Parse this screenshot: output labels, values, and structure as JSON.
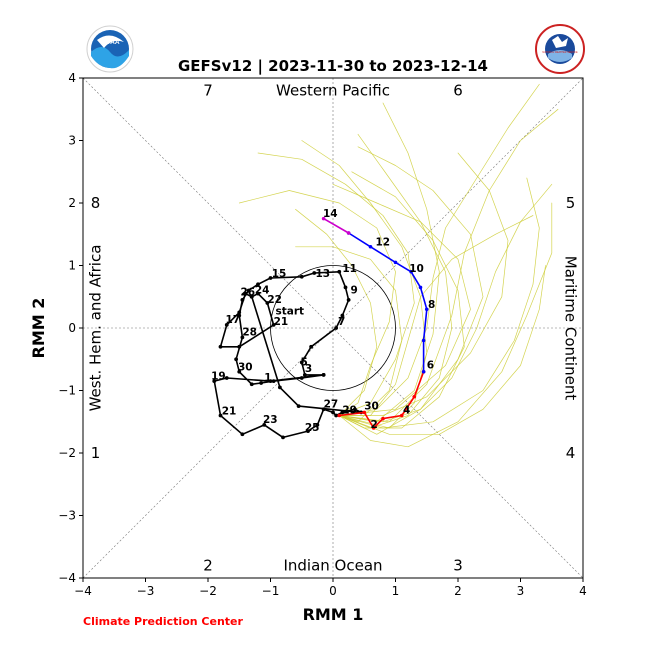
{
  "title": "GEFSv12 | 2023-11-30 to 2023-12-14",
  "credit": "Climate Prediction Center",
  "logos": {
    "left": {
      "text": "NOAA",
      "icon": "noaa-logo-icon"
    },
    "right": {
      "text": "NATIONAL WEATHER SERVICE",
      "icon": "nws-logo-icon"
    }
  },
  "colors": {
    "observed": "#000000",
    "forecast_week1": "#ff0000",
    "forecast_week2": "#0000ff",
    "forecast_end": "#cc00cc",
    "ensemble": "#cccc33",
    "credit": "#ff0000"
  },
  "chart_data": {
    "type": "line",
    "xlabel": "RMM 1",
    "ylabel": "RMM 2",
    "xlim": [
      -4,
      4
    ],
    "ylim": [
      -4,
      4
    ],
    "xticks": [
      -4,
      -3,
      -2,
      -1,
      0,
      1,
      2,
      3,
      4
    ],
    "yticks": [
      -4,
      -3,
      -2,
      -1,
      0,
      1,
      2,
      3,
      4
    ],
    "tick_labels": [
      "−4",
      "−3",
      "−2",
      "−1",
      "0",
      "1",
      "2",
      "3",
      "4"
    ],
    "unit_circle_radius": 1,
    "phase_labels": [
      {
        "text": "7",
        "x": -2.0,
        "y": 3.8
      },
      {
        "text": "6",
        "x": 2.0,
        "y": 3.8
      },
      {
        "text": "8",
        "x": -3.8,
        "y": 2.0
      },
      {
        "text": "5",
        "x": 3.8,
        "y": 2.0
      },
      {
        "text": "1",
        "x": -3.8,
        "y": -2.0
      },
      {
        "text": "4",
        "x": 3.8,
        "y": -2.0
      },
      {
        "text": "2",
        "x": -2.0,
        "y": -3.8
      },
      {
        "text": "3",
        "x": 2.0,
        "y": -3.8
      }
    ],
    "region_labels": {
      "top": "Western Pacific",
      "bottom": "Indian Ocean",
      "left": "West. Hem. and Africa",
      "right": "Maritime Continent"
    },
    "observed": [
      [
        -0.15,
        -0.75
      ],
      [
        -0.5,
        -0.8
      ],
      [
        -0.95,
        -0.85
      ],
      [
        -1.15,
        -0.88
      ],
      [
        -1.3,
        -0.9
      ],
      [
        -1.5,
        -0.7
      ],
      [
        -1.55,
        -0.5
      ],
      [
        -1.45,
        -0.15
      ],
      [
        -1.5,
        0.2
      ],
      [
        -1.45,
        0.45
      ],
      [
        -1.35,
        0.6
      ],
      [
        -1.2,
        0.7
      ],
      [
        -1.0,
        0.8
      ],
      [
        -0.5,
        0.82
      ],
      [
        -0.3,
        0.88
      ],
      [
        0.1,
        0.9
      ],
      [
        0.2,
        0.65
      ],
      [
        0.25,
        0.45
      ],
      [
        0.15,
        0.2
      ],
      [
        0.05,
        0.0
      ],
      [
        -0.35,
        -0.3
      ],
      [
        -0.5,
        -0.55
      ],
      [
        -0.45,
        -0.75
      ],
      [
        -0.15,
        -0.75
      ],
      [
        -1.0,
        -0.85
      ],
      [
        -1.7,
        -0.8
      ],
      [
        -1.9,
        -0.85
      ],
      [
        -1.8,
        -1.4
      ],
      [
        -1.45,
        -1.7
      ],
      [
        -1.1,
        -1.55
      ],
      [
        -0.8,
        -1.75
      ],
      [
        -0.4,
        -1.65
      ],
      [
        -0.25,
        -1.55
      ],
      [
        -0.15,
        -1.3
      ],
      [
        0.0,
        -1.35
      ],
      [
        0.05,
        -1.4
      ],
      [
        0.15,
        -1.35
      ],
      [
        0.35,
        -1.3
      ],
      [
        0.45,
        -1.35
      ],
      [
        -0.55,
        -1.25
      ],
      [
        -0.85,
        -0.95
      ],
      [
        -1.3,
        0.5
      ],
      [
        -1.2,
        0.55
      ],
      [
        -1.05,
        0.4
      ],
      [
        -0.95,
        0.05
      ],
      [
        -1.5,
        -0.3
      ],
      [
        -1.8,
        -0.3
      ],
      [
        -1.7,
        0.05
      ],
      [
        -1.5,
        0.25
      ],
      [
        -1.4,
        0.55
      ],
      [
        -1.3,
        0.5
      ]
    ],
    "observed_labels": [
      {
        "text": "start",
        "x": -0.92,
        "y": 0.22
      },
      {
        "text": "21",
        "x": -0.95,
        "y": 0.05
      },
      {
        "text": "22",
        "x": -1.05,
        "y": 0.4
      },
      {
        "text": "24",
        "x": -1.25,
        "y": 0.55
      },
      {
        "text": "26",
        "x": -1.48,
        "y": 0.52
      },
      {
        "text": "28",
        "x": -1.45,
        "y": -0.12
      },
      {
        "text": "17",
        "x": -1.72,
        "y": 0.08
      },
      {
        "text": "30",
        "x": -1.52,
        "y": -0.68
      },
      {
        "text": "1",
        "x": -1.1,
        "y": -0.85
      },
      {
        "text": "3",
        "x": -0.45,
        "y": -0.7
      },
      {
        "text": "5",
        "x": -0.52,
        "y": -0.6
      },
      {
        "text": "7",
        "x": 0.08,
        "y": 0.05
      },
      {
        "text": "9",
        "x": 0.28,
        "y": 0.55
      },
      {
        "text": "11",
        "x": 0.15,
        "y": 0.9
      },
      {
        "text": "13",
        "x": -0.28,
        "y": 0.82
      },
      {
        "text": "15",
        "x": -0.98,
        "y": 0.82
      },
      {
        "text": "19",
        "x": -1.95,
        "y": -0.82
      },
      {
        "text": "21",
        "x": -1.78,
        "y": -1.38
      },
      {
        "text": "23",
        "x": -1.12,
        "y": -1.52
      },
      {
        "text": "25",
        "x": -0.45,
        "y": -1.65
      },
      {
        "text": "27",
        "x": -0.15,
        "y": -1.27
      },
      {
        "text": "29",
        "x": 0.15,
        "y": -1.37
      },
      {
        "text": "30",
        "x": 0.5,
        "y": -1.3
      }
    ],
    "forecast_week1": [
      [
        0.1,
        -1.4
      ],
      [
        0.5,
        -1.35
      ],
      [
        0.65,
        -1.6
      ],
      [
        0.8,
        -1.45
      ],
      [
        1.1,
        -1.4
      ],
      [
        1.3,
        -1.1
      ],
      [
        1.45,
        -0.7
      ]
    ],
    "forecast_week1_labels": [
      {
        "text": "2",
        "x": 0.6,
        "y": -1.6
      },
      {
        "text": "4",
        "x": 1.12,
        "y": -1.37
      },
      {
        "text": "6",
        "x": 1.5,
        "y": -0.65
      }
    ],
    "forecast_week2": [
      [
        1.45,
        -0.7
      ],
      [
        1.45,
        -0.2
      ],
      [
        1.5,
        0.3
      ],
      [
        1.4,
        0.65
      ],
      [
        1.25,
        0.9
      ],
      [
        1.0,
        1.05
      ],
      [
        0.6,
        1.3
      ],
      [
        0.25,
        1.52
      ]
    ],
    "forecast_week2_labels": [
      {
        "text": "8",
        "x": 1.52,
        "y": 0.32
      },
      {
        "text": "10",
        "x": 1.22,
        "y": 0.9
      },
      {
        "text": "12",
        "x": 0.68,
        "y": 1.32
      },
      {
        "text": "14",
        "x": -0.16,
        "y": 1.78
      }
    ],
    "forecast_end": [
      [
        0.25,
        1.52
      ],
      [
        -0.15,
        1.75
      ]
    ],
    "ensemble": [
      [
        [
          0.1,
          -1.4
        ],
        [
          0.7,
          -1.7
        ],
        [
          1.4,
          -1.3
        ],
        [
          2.0,
          -0.5
        ],
        [
          2.4,
          0.5
        ],
        [
          2.2,
          1.5
        ],
        [
          1.6,
          2.2
        ],
        [
          1.0,
          2.6
        ],
        [
          0.4,
          2.9
        ]
      ],
      [
        [
          0.1,
          -1.4
        ],
        [
          0.9,
          -1.5
        ],
        [
          1.5,
          -0.9
        ],
        [
          1.9,
          0.2
        ],
        [
          2.1,
          1.2
        ],
        [
          2.5,
          2.2
        ],
        [
          3.0,
          3.0
        ],
        [
          3.6,
          3.5
        ]
      ],
      [
        [
          0.1,
          -1.4
        ],
        [
          0.6,
          -1.2
        ],
        [
          1.0,
          -0.5
        ],
        [
          1.3,
          0.4
        ],
        [
          1.2,
          1.2
        ],
        [
          0.8,
          1.8
        ],
        [
          0.2,
          2.3
        ],
        [
          -0.5,
          2.7
        ],
        [
          -1.2,
          2.8
        ]
      ],
      [
        [
          0.1,
          -1.4
        ],
        [
          0.8,
          -1.6
        ],
        [
          1.6,
          -1.5
        ],
        [
          2.4,
          -1.0
        ],
        [
          2.9,
          -0.2
        ],
        [
          3.2,
          0.7
        ],
        [
          3.3,
          1.6
        ],
        [
          3.1,
          2.4
        ]
      ],
      [
        [
          0.1,
          -1.4
        ],
        [
          0.5,
          -1.0
        ],
        [
          0.7,
          -0.3
        ],
        [
          0.6,
          0.4
        ],
        [
          0.3,
          1.0
        ],
        [
          -0.1,
          1.5
        ],
        [
          -0.6,
          1.9
        ]
      ],
      [
        [
          0.1,
          -1.4
        ],
        [
          1.0,
          -1.3
        ],
        [
          1.8,
          -0.6
        ],
        [
          2.2,
          0.3
        ],
        [
          2.0,
          1.1
        ],
        [
          1.4,
          1.7
        ],
        [
          0.7,
          2.0
        ],
        [
          0.0,
          2.3
        ]
      ],
      [
        [
          0.1,
          -1.4
        ],
        [
          0.6,
          -1.8
        ],
        [
          1.2,
          -1.9
        ],
        [
          2.0,
          -1.5
        ],
        [
          2.7,
          -0.7
        ],
        [
          3.1,
          0.2
        ],
        [
          3.5,
          1.2
        ],
        [
          3.5,
          2.0
        ]
      ],
      [
        [
          0.1,
          -1.4
        ],
        [
          0.7,
          -1.3
        ],
        [
          1.2,
          -0.8
        ],
        [
          1.5,
          0.0
        ],
        [
          1.6,
          0.8
        ],
        [
          1.8,
          1.6
        ],
        [
          2.3,
          2.4
        ],
        [
          2.8,
          3.2
        ],
        [
          3.3,
          3.9
        ]
      ],
      [
        [
          0.1,
          -1.4
        ],
        [
          0.9,
          -1.6
        ],
        [
          1.3,
          -1.2
        ],
        [
          1.5,
          -0.4
        ],
        [
          1.4,
          0.5
        ],
        [
          1.1,
          1.3
        ],
        [
          0.6,
          2.0
        ],
        [
          0.1,
          2.6
        ],
        [
          -0.5,
          3.0
        ]
      ],
      [
        [
          0.1,
          -1.4
        ],
        [
          0.4,
          -1.5
        ],
        [
          0.9,
          -1.0
        ],
        [
          1.1,
          -0.2
        ],
        [
          1.0,
          0.6
        ],
        [
          0.6,
          1.1
        ],
        [
          0.0,
          1.3
        ],
        [
          -0.6,
          1.3
        ]
      ],
      [
        [
          0.1,
          -1.4
        ],
        [
          0.8,
          -1.4
        ],
        [
          1.5,
          -1.1
        ],
        [
          2.2,
          -0.4
        ],
        [
          2.7,
          0.5
        ],
        [
          2.8,
          1.4
        ],
        [
          2.5,
          2.2
        ],
        [
          2.0,
          2.8
        ]
      ],
      [
        [
          0.1,
          -1.4
        ],
        [
          0.5,
          -1.6
        ],
        [
          1.1,
          -1.6
        ],
        [
          1.7,
          -1.1
        ],
        [
          2.1,
          -0.3
        ],
        [
          2.0,
          0.6
        ],
        [
          1.6,
          1.4
        ],
        [
          1.0,
          2.1
        ],
        [
          0.3,
          2.5
        ]
      ],
      [
        [
          0.1,
          -1.4
        ],
        [
          0.7,
          -1.5
        ],
        [
          1.3,
          -1.0
        ],
        [
          1.6,
          -0.1
        ],
        [
          1.7,
          0.9
        ],
        [
          1.5,
          1.9
        ],
        [
          1.2,
          2.8
        ],
        [
          0.8,
          3.6
        ]
      ],
      [
        [
          0.1,
          -1.4
        ],
        [
          0.6,
          -1.4
        ],
        [
          1.0,
          -0.9
        ],
        [
          1.2,
          -0.2
        ],
        [
          1.4,
          0.5
        ],
        [
          1.9,
          1.1
        ],
        [
          2.6,
          1.5
        ],
        [
          3.2,
          1.8
        ]
      ],
      [
        [
          0.1,
          -1.4
        ],
        [
          0.9,
          -1.7
        ],
        [
          1.7,
          -1.7
        ],
        [
          2.4,
          -1.3
        ],
        [
          3.0,
          -0.6
        ],
        [
          3.3,
          0.3
        ],
        [
          3.4,
          1.0
        ]
      ],
      [
        [
          0.1,
          -1.4
        ],
        [
          0.4,
          -1.2
        ],
        [
          0.6,
          -0.6
        ],
        [
          0.9,
          0.1
        ],
        [
          1.0,
          0.9
        ],
        [
          0.7,
          1.6
        ],
        [
          0.1,
          2.0
        ],
        [
          -0.7,
          2.2
        ],
        [
          -1.5,
          2.0
        ]
      ],
      [
        [
          0.1,
          -1.4
        ],
        [
          0.8,
          -1.5
        ],
        [
          1.4,
          -1.3
        ],
        [
          1.9,
          -0.8
        ],
        [
          2.3,
          0.0
        ],
        [
          2.6,
          0.9
        ],
        [
          3.0,
          1.7
        ],
        [
          3.5,
          2.3
        ]
      ],
      [
        [
          0.1,
          -1.4
        ],
        [
          0.6,
          -1.6
        ],
        [
          1.2,
          -1.4
        ],
        [
          1.7,
          -0.8
        ],
        [
          1.9,
          0.0
        ],
        [
          1.8,
          0.9
        ],
        [
          1.4,
          1.7
        ],
        [
          0.9,
          2.4
        ],
        [
          0.4,
          3.1
        ]
      ]
    ]
  }
}
